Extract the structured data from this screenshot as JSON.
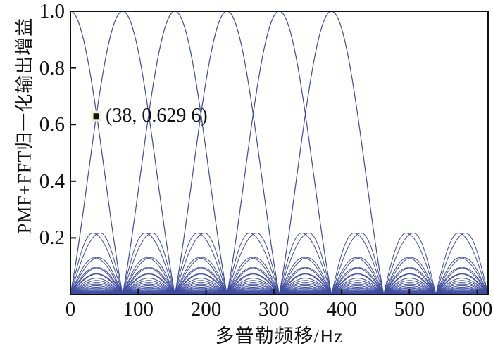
{
  "chart_data": {
    "type": "line",
    "title": "",
    "xlabel": "多普勒频移/Hz",
    "ylabel": "PMF+FFT归一化输出增益",
    "xlim": [
      0,
      616
    ],
    "ylim": [
      0,
      1.0
    ],
    "x_tick_values": [
      0,
      100,
      200,
      300,
      400,
      500,
      600
    ],
    "x_tick_labels": [
      "0",
      "100",
      "200",
      "300",
      "400",
      "500",
      "600"
    ],
    "y_tick_values": [
      0.2,
      0.4,
      0.6,
      0.8,
      1.0
    ],
    "y_tick_labels": [
      "0.2",
      "0.4",
      "0.6",
      "0.8",
      "1.0"
    ],
    "grid": false,
    "legend": "none",
    "curve_color": "#3e4c9f",
    "frame_color": "#111111",
    "doppler_bin_spacing_hz": 77,
    "mainlobe_centers_hz": [
      0,
      77,
      154,
      231,
      308,
      385
    ],
    "mainlobe_peak_gain": 1.0,
    "adjacent_filter_crossing_gain": 0.6296,
    "sidelobe_interval_count": 8,
    "sidelobe_pair_humps": [
      {
        "height": 0.217,
        "offset_hz": 5.5
      },
      {
        "height": 0.13,
        "offset_hz": 3.2
      },
      {
        "height": 0.095,
        "offset_hz": 2.2
      },
      {
        "height": 0.073,
        "offset_hz": 1.5
      }
    ],
    "sidelobe_single_heights": [
      0.058,
      0.05,
      0.043,
      0.037,
      0.031,
      0.026,
      0.022,
      0.018,
      0.015,
      0.012,
      0.01,
      0.008,
      0.006,
      0.005,
      0.004,
      0.003
    ],
    "marked_point": {
      "x": 38,
      "y": 0.6296,
      "label": "(38, 0.629 6)",
      "marker": "black-square",
      "marker_highlight_color": "#f4efcd"
    }
  }
}
